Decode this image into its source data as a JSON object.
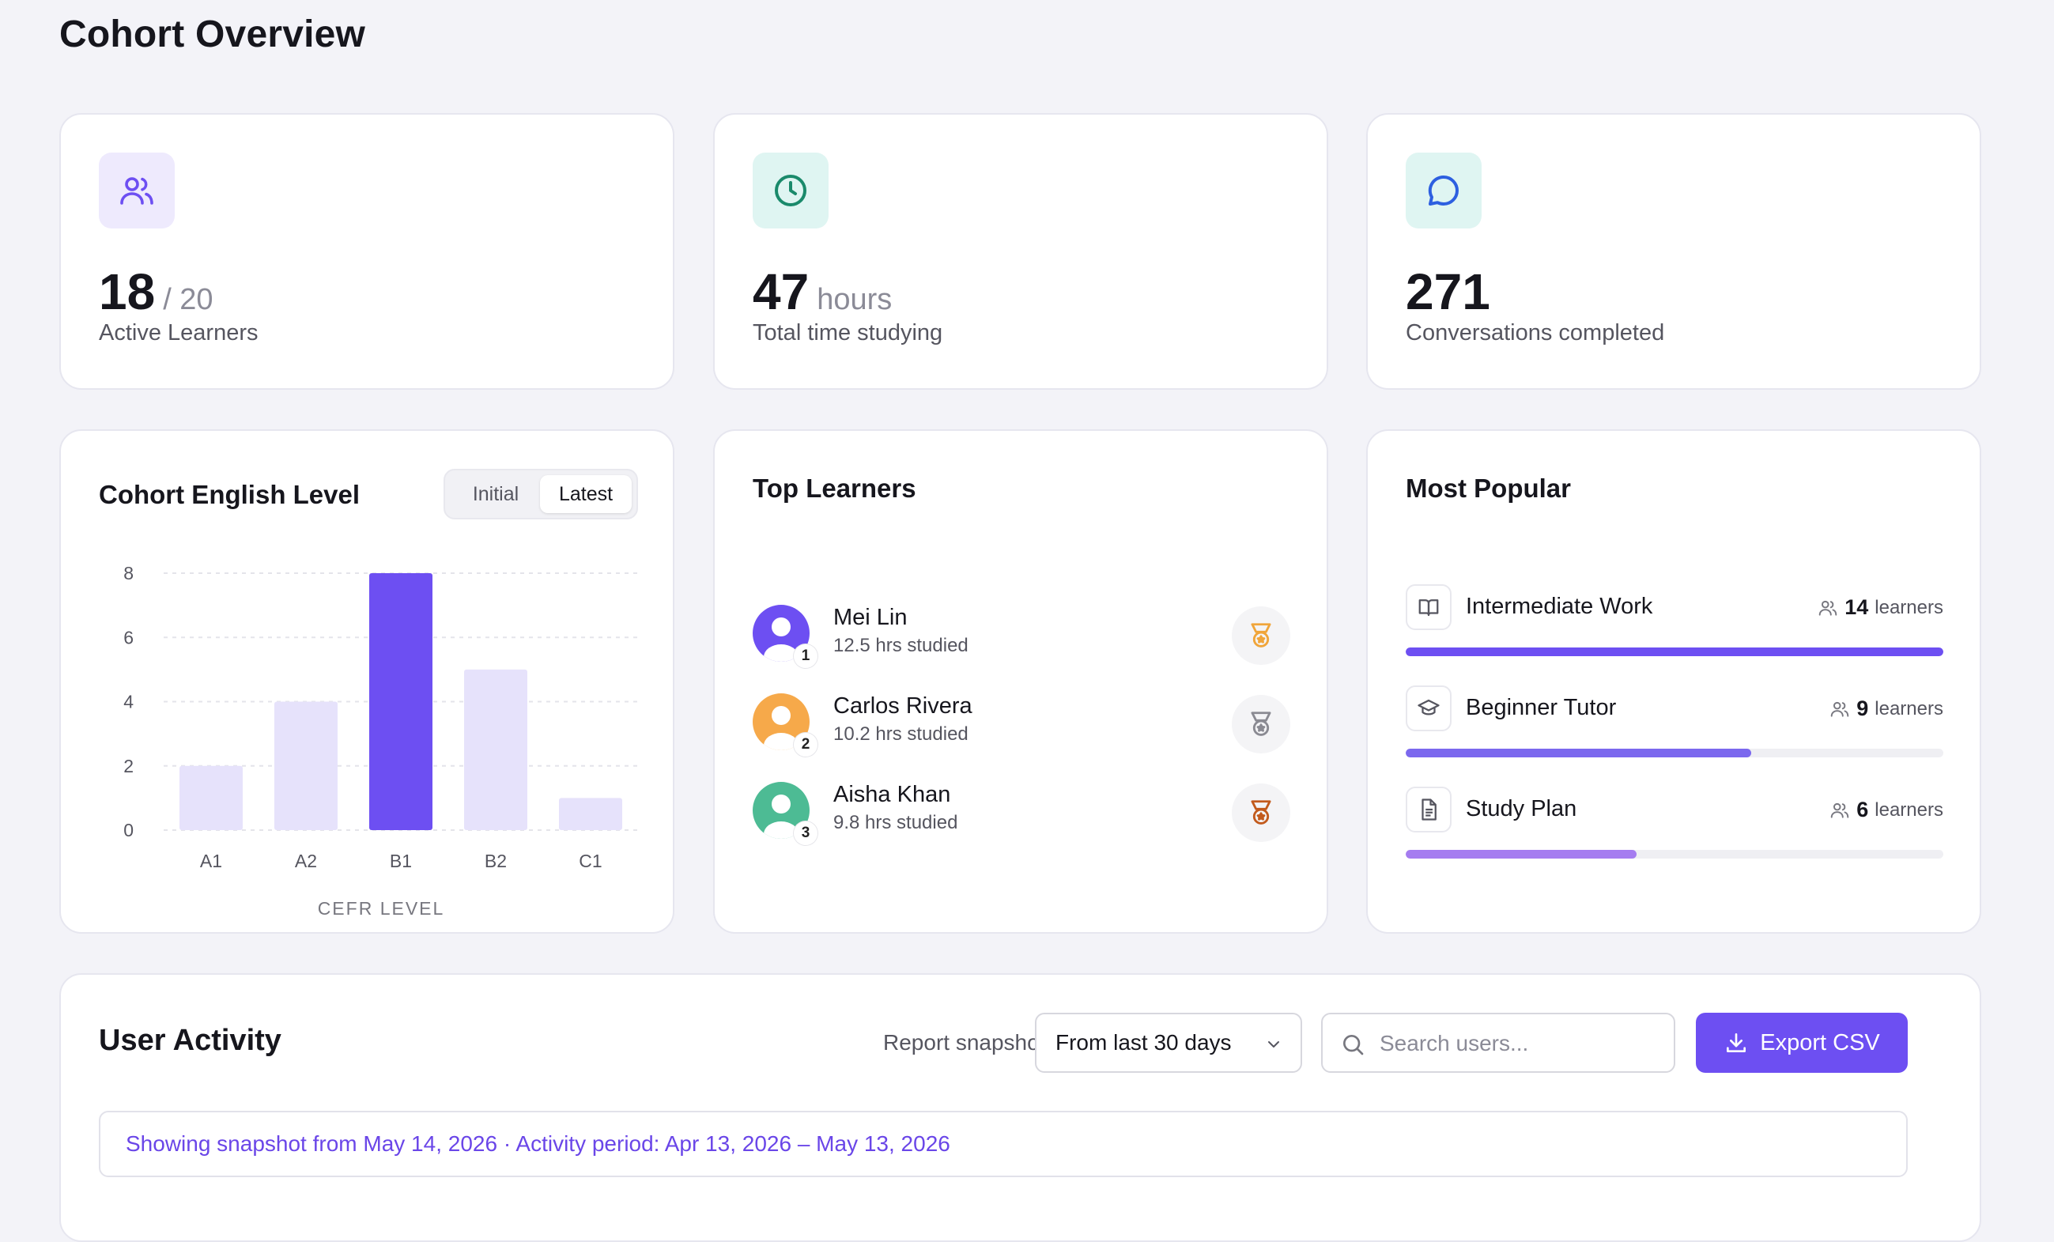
{
  "page": {
    "title": "Cohort Overview"
  },
  "stats": [
    {
      "icon": "users-icon",
      "value": "18",
      "suffix": "/ 20",
      "label": "Active Learners",
      "icon_bg": "#eeeafd",
      "icon_color": "#6d4ff2"
    },
    {
      "icon": "clock-icon",
      "value": "47",
      "suffix": "hours",
      "label": "Total time studying",
      "icon_bg": "#dff5f2",
      "icon_color": "#1a8a6b"
    },
    {
      "icon": "chat-icon",
      "value": "271",
      "suffix": "",
      "label": "Conversations completed",
      "icon_bg": "#dff5f2",
      "icon_color": "#2d5fe0"
    }
  ],
  "level_card": {
    "title": "Cohort English Level",
    "toggle": {
      "options": [
        "Initial",
        "Latest"
      ],
      "selected": "Latest"
    }
  },
  "chart_data": {
    "type": "bar",
    "title": "Cohort English Level",
    "categories": [
      "A1",
      "A2",
      "B1",
      "B2",
      "C1"
    ],
    "values": [
      2,
      4,
      8,
      5,
      1
    ],
    "highlight": "B1",
    "xlabel": "CEFR LEVEL",
    "ylabel": "",
    "ylim": [
      0,
      8
    ],
    "yticks": [
      0,
      2,
      4,
      6,
      8
    ],
    "grid": true,
    "colors": {
      "bar": "#e6e2fb",
      "highlight": "#6d4ff2"
    }
  },
  "top_learners": {
    "title": "Top Learners",
    "items": [
      {
        "rank": "1",
        "name": "Mei Lin",
        "hours": "12.5 hrs studied",
        "avatar_color": "#6d4ff2",
        "medal_color": "#f0a53a",
        "medal": "gold-medal-icon"
      },
      {
        "rank": "2",
        "name": "Carlos Rivera",
        "hours": "10.2 hrs studied",
        "avatar_color": "#f6a94a",
        "medal_color": "#8a8a92",
        "medal": "silver-medal-icon"
      },
      {
        "rank": "3",
        "name": "Aisha Khan",
        "hours": "9.8 hrs studied",
        "avatar_color": "#4dbb94",
        "medal_color": "#c25a1c",
        "medal": "bronze-medal-icon"
      }
    ]
  },
  "most_popular": {
    "title": "Most Popular",
    "items": [
      {
        "icon": "book-icon",
        "name": "Intermediate Work",
        "count": "14",
        "unit": "learners",
        "fill": 1.0,
        "color": "#6d4ff2"
      },
      {
        "icon": "graduation-cap-icon",
        "name": "Beginner Tutor",
        "count": "9",
        "unit": "learners",
        "fill": 0.643,
        "color": "#7b68ee"
      },
      {
        "icon": "document-icon",
        "name": "Study Plan",
        "count": "6",
        "unit": "learners",
        "fill": 0.429,
        "color": "#a57cf0"
      }
    ]
  },
  "activity": {
    "title": "User Activity",
    "snapshot_label": "Report snapshot",
    "range_selected": "From last 30 days",
    "search_placeholder": "Search users...",
    "export_label": "Export CSV",
    "notice": "Showing snapshot from May 14, 2026 · Activity period: Apr 13, 2026 – May 13, 2026"
  }
}
